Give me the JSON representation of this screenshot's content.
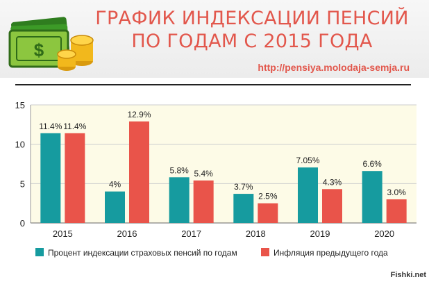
{
  "header": {
    "title_line1": "ГРАФИК ИНДЕКСАЦИИ ПЕНСИЙ",
    "title_line2": "ПО ГОДАМ С 2015 ГОДА",
    "url": "http://pensiya.molodaja-semja.ru"
  },
  "watermark": "Fishki.net",
  "colors": {
    "series1": "#169b9f",
    "series2": "#e9544a",
    "plot_bg": "#fdfbe7",
    "title": "#e2574c"
  },
  "chart_data": {
    "type": "bar",
    "categories": [
      "2015",
      "2016",
      "2017",
      "2018",
      "2019",
      "2020"
    ],
    "series": [
      {
        "name": "Процент индексации страховых пенсий по годам",
        "values": [
          11.4,
          4,
          5.8,
          3.7,
          7.05,
          6.6
        ],
        "labels": [
          "11.4%",
          "4%",
          "5.8%",
          "3.7%",
          "7.05%",
          "6.6%"
        ]
      },
      {
        "name": "Инфляция предыдущего года",
        "values": [
          11.4,
          12.9,
          5.4,
          2.5,
          4.3,
          3.0
        ],
        "labels": [
          "11.4%",
          "12.9%",
          "5.4%",
          "2.5%",
          "4.3%",
          "3.0%"
        ]
      }
    ],
    "ylim": [
      0,
      15
    ],
    "yticks": [
      "0",
      "5",
      "10",
      "15"
    ],
    "grid": true,
    "legend_position": "bottom"
  }
}
